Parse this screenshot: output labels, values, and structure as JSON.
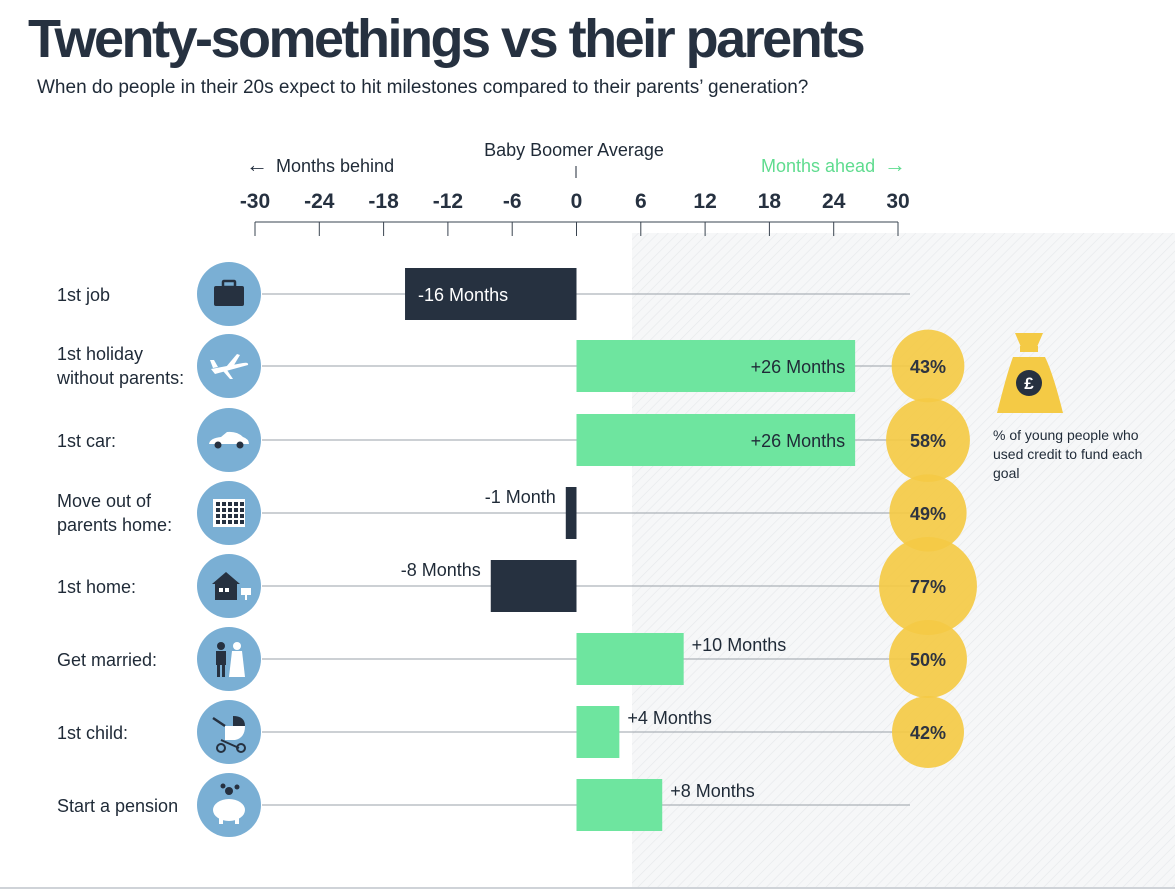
{
  "title": "Twenty-somethings vs their parents",
  "subtitle": "When do people in their 20s expect to hit milestones compared to their parents’ generation?",
  "axis": {
    "center_label": "Baby Boomer Average",
    "behind_label": "Months behind",
    "ahead_label": "Months ahead",
    "behind_arrow": "←",
    "ahead_arrow": "→"
  },
  "legend": {
    "icon": "money-bag-pound-icon",
    "symbol": "£",
    "text": "% of young people who used credit to fund each goal"
  },
  "colors": {
    "behind": "#263140",
    "ahead": "#6ee59f",
    "ahead_text": "#5fdc8f",
    "bubble": "#f4ca45",
    "bubble_text": "#2e3440",
    "icon_circle": "#7aafd4",
    "icon_fill": "#263140"
  },
  "chart_data": {
    "type": "bar",
    "orientation": "horizontal",
    "xlim": [
      -30,
      30
    ],
    "xticks": [
      "-30",
      "-24",
      "-18",
      "-12",
      "-6",
      "0",
      "6",
      "12",
      "18",
      "24",
      "30"
    ],
    "categories": [
      "1st job",
      "1st holiday without parents:",
      "1st car:",
      "Move out of parents home:",
      "1st home:",
      "Get married:",
      "1st child:",
      "Start a pension"
    ],
    "label_lines": [
      [
        "1st job"
      ],
      [
        "1st holiday",
        "without parents:"
      ],
      [
        "1st car:"
      ],
      [
        "Move out of",
        "parents home:"
      ],
      [
        "1st home:"
      ],
      [
        "Get married:"
      ],
      [
        "1st child:"
      ],
      [
        "Start a pension"
      ]
    ],
    "icons": [
      "briefcase-icon",
      "airplane-icon",
      "car-icon",
      "apartment-building-icon",
      "house-icon",
      "wedding-couple-icon",
      "pram-icon",
      "piggy-bank-icon"
    ],
    "values": [
      -16,
      26,
      26,
      -1,
      -8,
      10,
      4,
      8
    ],
    "value_labels": [
      "-16 Months",
      "+26 Months",
      "+26 Months",
      "-1 Month",
      "-8 Months",
      "+10 Months",
      "+4 Months",
      "+8 Months"
    ],
    "credit_percent": [
      null,
      43,
      58,
      49,
      77,
      50,
      42,
      null
    ],
    "credit_labels": [
      null,
      "43%",
      "58%",
      "49%",
      "77%",
      "50%",
      "42%",
      null
    ]
  }
}
